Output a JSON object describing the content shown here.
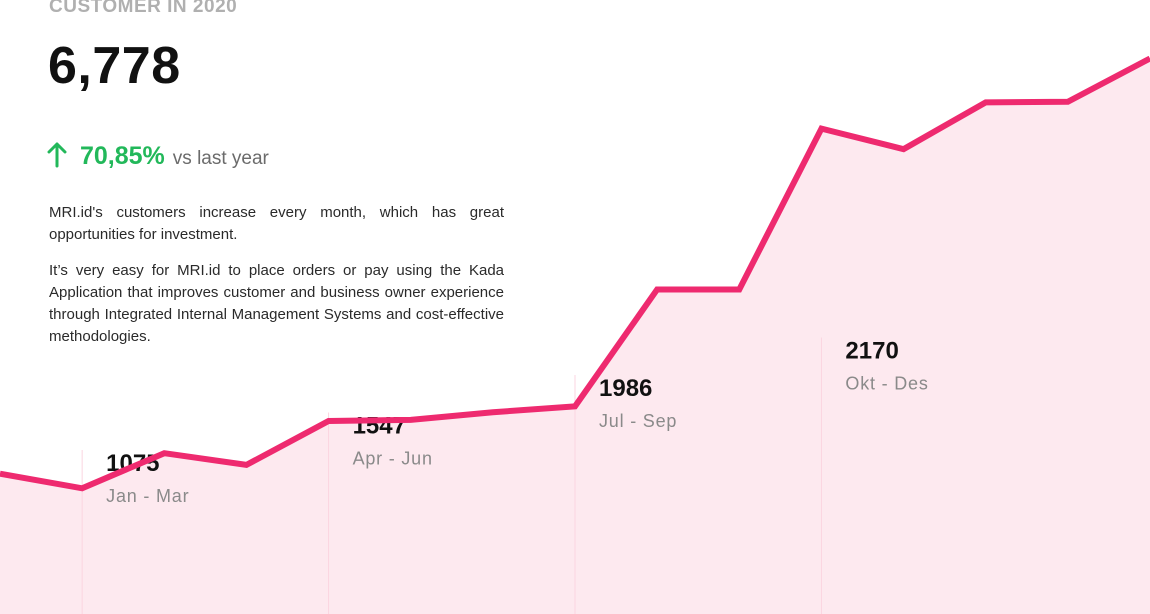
{
  "header": {
    "eyebrow": "CUSTOMER IN 2020",
    "total": "6,778",
    "growth_value": "70,85%",
    "growth_suffix": "vs last year",
    "growth_icon": "arrow-up-icon"
  },
  "description": {
    "paragraph_1": "MRI.id's customers increase every month, which has great opportunities for investment.",
    "paragraph_2": "It’s very easy for MRI.id to place orders or pay using the Kada Application that improves customer and business owner experience through Integrated Internal Management Systems and cost-effective methodologies."
  },
  "colors": {
    "line": "#ee2a6f",
    "area": "#fde9ef",
    "divider": "#fbd5e0",
    "growth": "#22b85a"
  },
  "chart_data": {
    "type": "area",
    "grid": false,
    "legend": "none",
    "title": "",
    "xlabel": "",
    "ylabel": "",
    "quarters": [
      {
        "value": "1075",
        "label": "Jan - Mar"
      },
      {
        "value": "1547",
        "label": "Apr - Jun"
      },
      {
        "value": "1986",
        "label": "Jul - Sep"
      },
      {
        "value": "2170",
        "label": "Okt - Des"
      }
    ],
    "series": [
      {
        "x": [
          0,
          1,
          2,
          3,
          4,
          5,
          6,
          7,
          8,
          9,
          10,
          11,
          12,
          13,
          14
        ],
        "values": [
          1020,
          995,
          1055,
          1035,
          1110,
          1112,
          1125,
          1135,
          1335,
          1335,
          1610,
          1575,
          1655,
          1656,
          1730
        ]
      }
    ],
    "ylim": [
      780,
      1830
    ]
  }
}
